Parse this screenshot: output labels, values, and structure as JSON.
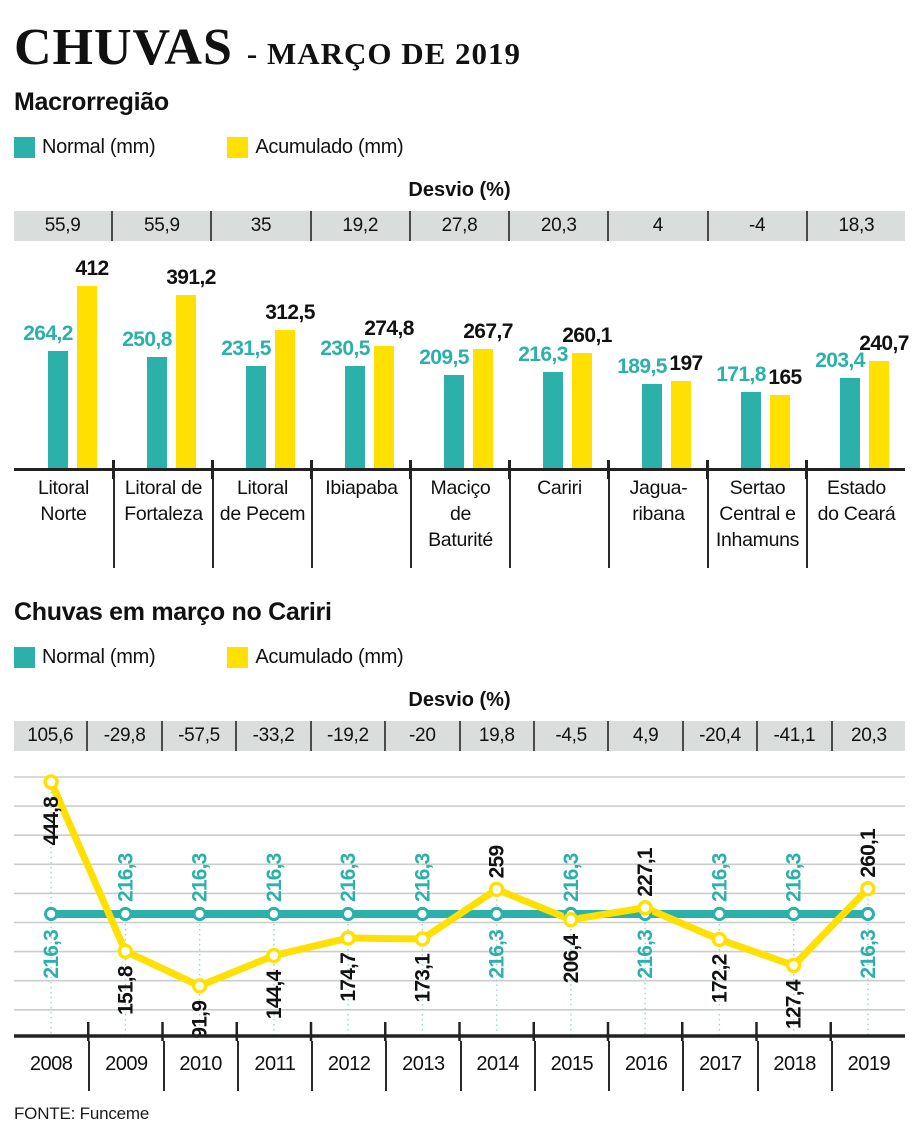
{
  "header": {
    "title": "CHUVAS",
    "subtitle": "- MARÇO DE 2019"
  },
  "colors": {
    "teal": "#2BB0AA",
    "yellow": "#FFE000",
    "band_grey": "#D9DEDC",
    "grid": "#C9CECD",
    "axis": "#222222",
    "text": "#111111"
  },
  "legend": {
    "normal": "Normal (mm)",
    "acumulado": "Acumulado (mm)"
  },
  "footer": {
    "source": "FONTE: Funceme"
  },
  "chart_data": [
    {
      "type": "bar",
      "section_title": "Macrorregião",
      "desvio_label": "Desvio (%)",
      "categories": [
        "Litoral\nNorte",
        "Litoral de\nFortaleza",
        "Litoral\nde Pecem",
        "Ibiapaba",
        "Maciço\nde\nBaturité",
        "Cariri",
        "Jagua-\nribana",
        "Sertao\nCentral e\nInhamuns",
        "Estado\ndo Ceará"
      ],
      "desvio": [
        "55,9",
        "55,9",
        "35",
        "19,2",
        "27,8",
        "20,3",
        "4",
        "-4",
        "18,3"
      ],
      "series": [
        {
          "name": "Normal (mm)",
          "color_key": "teal",
          "values": [
            264.2,
            250.8,
            231.5,
            230.5,
            209.5,
            216.3,
            189.5,
            171.8,
            203.4
          ],
          "labels": [
            "264,2",
            "250,8",
            "231,5",
            "230,5",
            "209,5",
            "216,3",
            "189,5",
            "171,8",
            "203,4"
          ]
        },
        {
          "name": "Acumulado (mm)",
          "color_key": "yellow",
          "values": [
            412,
            391.2,
            312.5,
            274.8,
            267.7,
            260.1,
            197,
            165,
            240.7
          ],
          "labels": [
            "412",
            "391,2",
            "312,5",
            "274,8",
            "267,7",
            "260,1",
            "197",
            "165",
            "240,7"
          ]
        }
      ],
      "ylim": [
        0,
        460
      ],
      "legend_position": "top-left",
      "grid": false
    },
    {
      "type": "line",
      "section_title": "Chuvas em março no Cariri",
      "desvio_label": "Desvio (%)",
      "categories": [
        "2008",
        "2009",
        "2010",
        "2011",
        "2012",
        "2013",
        "2014",
        "2015",
        "2016",
        "2017",
        "2018",
        "2019"
      ],
      "desvio": [
        "105,6",
        "-29,8",
        "-57,5",
        "-33,2",
        "-19,2",
        "-20",
        "19,8",
        "-4,5",
        "4,9",
        "-20,4",
        "-41,1",
        "20,3"
      ],
      "series": [
        {
          "name": "Normal (mm)",
          "color_key": "teal",
          "values": [
            216.3,
            216.3,
            216.3,
            216.3,
            216.3,
            216.3,
            216.3,
            216.3,
            216.3,
            216.3,
            216.3,
            216.3
          ],
          "labels": [
            "216,3",
            "216,3",
            "216,3",
            "216,3",
            "216,3",
            "216,3",
            "216,3",
            "216,3",
            "216,3",
            "216,3",
            "216,3",
            "216,3"
          ]
        },
        {
          "name": "Acumulado (mm)",
          "color_key": "yellow",
          "values": [
            444.8,
            151.8,
            91.9,
            144.4,
            174.7,
            173.1,
            259,
            206.4,
            227.1,
            172.2,
            127.4,
            260.1
          ],
          "labels": [
            "444,8",
            "151,8",
            "91,9",
            "144,4",
            "174,7",
            "173,1",
            "259",
            "206,4",
            "227,1",
            "172,2",
            "127,4",
            "260,1"
          ]
        }
      ],
      "ylim": [
        0,
        460
      ],
      "grid": true,
      "legend_position": "top-left"
    }
  ]
}
